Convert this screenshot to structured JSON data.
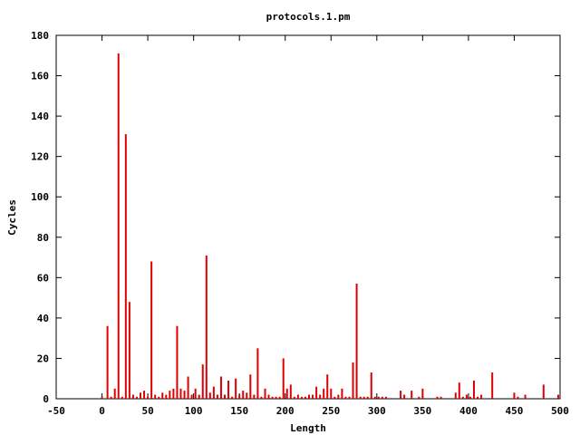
{
  "chart_data": {
    "type": "bar",
    "title": "protocols.1.pm",
    "xlabel": "Length",
    "ylabel": "Cycles",
    "xlim": [
      -50,
      500
    ],
    "ylim": [
      0,
      180
    ],
    "xticks": [
      -50,
      0,
      50,
      100,
      150,
      200,
      250,
      300,
      350,
      400,
      450,
      500
    ],
    "yticks": [
      0,
      20,
      40,
      60,
      80,
      100,
      120,
      140,
      160,
      180
    ],
    "grid": false,
    "legend": "none",
    "color": "#dd0000",
    "x": [
      0,
      6,
      10,
      14,
      18,
      22,
      26,
      30,
      34,
      38,
      42,
      46,
      50,
      54,
      58,
      62,
      66,
      70,
      74,
      78,
      82,
      86,
      90,
      94,
      98,
      102,
      106,
      110,
      114,
      118,
      122,
      126,
      130,
      134,
      138,
      142,
      146,
      150,
      154,
      158,
      162,
      166,
      170,
      174,
      178,
      182,
      186,
      190,
      194,
      198,
      202,
      206,
      210,
      214,
      218,
      222,
      226,
      230,
      234,
      238,
      242,
      246,
      250,
      254,
      258,
      262,
      266,
      270,
      274,
      278,
      282,
      286,
      290,
      294,
      298,
      302,
      306,
      310,
      326,
      330,
      338,
      346,
      350,
      366,
      370,
      386,
      390,
      394,
      398,
      402,
      406,
      410,
      414,
      426,
      450,
      454,
      462,
      482,
      498
    ],
    "values": [
      1,
      36,
      1,
      5,
      171,
      1,
      131,
      48,
      2,
      1,
      3,
      4,
      1,
      68,
      2,
      1,
      3,
      2,
      4,
      5,
      36,
      5,
      4,
      11,
      2,
      5,
      2,
      17,
      71,
      3,
      6,
      2,
      11,
      2,
      9,
      1,
      10,
      2,
      4,
      3,
      12,
      2,
      25,
      1,
      5,
      2,
      1,
      1,
      1,
      20,
      5,
      7,
      1,
      2,
      1,
      1,
      2,
      2,
      6,
      2,
      5,
      12,
      5,
      1,
      2,
      5,
      1,
      1,
      18,
      57,
      1,
      1,
      1,
      13,
      1,
      1,
      1,
      1,
      4,
      2,
      4,
      1,
      5,
      1,
      1,
      3,
      8,
      1,
      2,
      1,
      9,
      1,
      2,
      13,
      3,
      1,
      2,
      7,
      2
    ]
  }
}
